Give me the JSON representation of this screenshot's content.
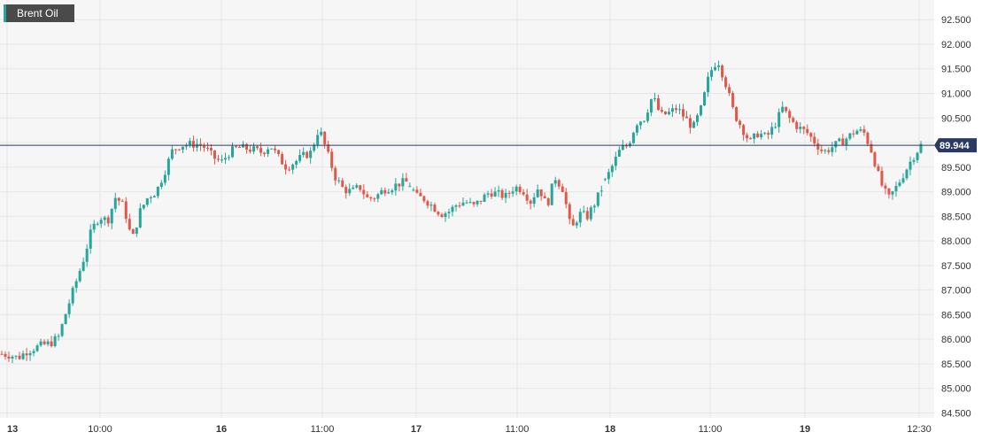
{
  "chart_data": {
    "type": "candlestick",
    "title": "",
    "series_name": "Brent Oil",
    "last_price": "89.944",
    "ylim": [
      84.4,
      92.9
    ],
    "y_ticks": [
      "84.500",
      "85.000",
      "85.500",
      "86.000",
      "86.500",
      "87.000",
      "87.500",
      "88.000",
      "88.500",
      "89.000",
      "89.500",
      "90.000",
      "90.500",
      "91.000",
      "91.500",
      "92.000",
      "92.500"
    ],
    "x_ticks": [
      {
        "label": "13",
        "major": true
      },
      {
        "label": "10:00",
        "major": false
      },
      {
        "label": "16",
        "major": true
      },
      {
        "label": "11:00",
        "major": false
      },
      {
        "label": "17",
        "major": true
      },
      {
        "label": "11:00",
        "major": false
      },
      {
        "label": "18",
        "major": true
      },
      {
        "label": "11:00",
        "major": false
      },
      {
        "label": "19",
        "major": true
      },
      {
        "label": "12:30",
        "major": false
      }
    ],
    "close_path": [
      85.7,
      85.68,
      85.62,
      85.75,
      85.82,
      85.88,
      85.92,
      86.05,
      86.6,
      87.1,
      87.6,
      88.2,
      88.5,
      88.4,
      88.9,
      88.7,
      88.0,
      88.6,
      88.9,
      89.0,
      89.4,
      89.85,
      89.95,
      89.96,
      89.97,
      89.9,
      89.7,
      89.6,
      89.8,
      89.9,
      89.88,
      89.85,
      89.8,
      89.95,
      89.7,
      89.5,
      89.6,
      89.72,
      89.8,
      90.3,
      89.8,
      89.3,
      89.05,
      89.0,
      89.1,
      88.85,
      88.9,
      89.05,
      89.1,
      89.18,
      89.2,
      88.9,
      88.85,
      88.7,
      88.55,
      88.6,
      88.75,
      88.8,
      88.7,
      88.85,
      89.0,
      88.95,
      88.9,
      89.1,
      89.05,
      88.8,
      89.1,
      88.7,
      89.3,
      89.05,
      88.2,
      88.55,
      88.5,
      88.8,
      89.15,
      89.5,
      89.85,
      89.95,
      90.4,
      90.5,
      90.95,
      90.55,
      90.6,
      90.7,
      90.5,
      90.3,
      90.7,
      91.4,
      91.7,
      91.2,
      90.6,
      90.3,
      90.0,
      90.2,
      90.1,
      90.35,
      90.7,
      90.45,
      90.3,
      90.2,
      90.0,
      89.8,
      89.9,
      90.0,
      90.1,
      90.25,
      90.2,
      89.8,
      89.2,
      88.85,
      89.1,
      89.4,
      89.7,
      89.944
    ]
  },
  "colors": {
    "up": "#26a69a",
    "down": "#e0584a",
    "price_line": "#2b3a63",
    "grid": "#e6e6e6",
    "background": "#f6f6f6",
    "axis_bg": "#ffffff"
  }
}
